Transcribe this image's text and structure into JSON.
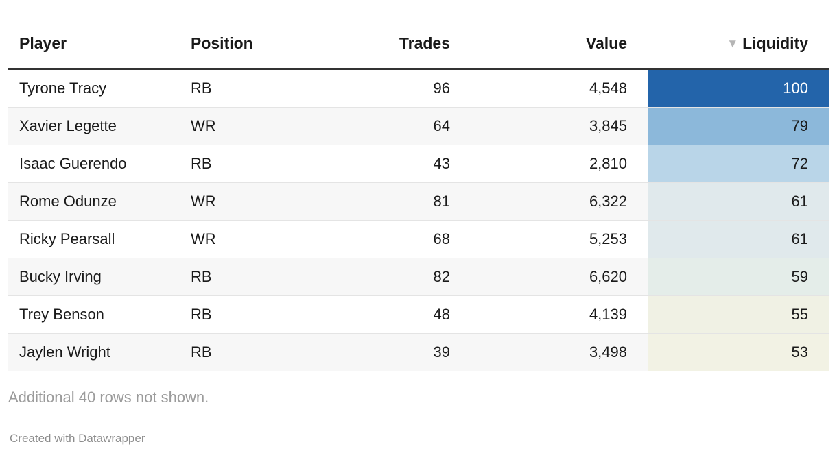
{
  "chart_data": {
    "type": "table",
    "title": "",
    "columns": [
      "Player",
      "Position",
      "Trades",
      "Value",
      "Liquidity"
    ],
    "column_alignment": [
      "left",
      "left",
      "right",
      "right",
      "right"
    ],
    "sorted_by": {
      "column": "Liquidity",
      "direction": "desc"
    },
    "rows": [
      {
        "player": "Tyrone Tracy",
        "position": "RB",
        "trades": 96,
        "value": 4548,
        "liquidity": 100
      },
      {
        "player": "Xavier Legette",
        "position": "WR",
        "trades": 64,
        "value": 3845,
        "liquidity": 79
      },
      {
        "player": "Isaac Guerendo",
        "position": "RB",
        "trades": 43,
        "value": 2810,
        "liquidity": 72
      },
      {
        "player": "Rome Odunze",
        "position": "WR",
        "trades": 81,
        "value": 6322,
        "liquidity": 61
      },
      {
        "player": "Ricky Pearsall",
        "position": "WR",
        "trades": 68,
        "value": 5253,
        "liquidity": 61
      },
      {
        "player": "Bucky Irving",
        "position": "RB",
        "trades": 82,
        "value": 6620,
        "liquidity": 59
      },
      {
        "player": "Trey Benson",
        "position": "RB",
        "trades": 48,
        "value": 4139,
        "liquidity": 55
      },
      {
        "player": "Jaylen Wright",
        "position": "RB",
        "trades": 39,
        "value": 3498,
        "liquidity": 53
      }
    ],
    "heatmap_column": "Liquidity",
    "legend_position": "none",
    "grid": "row-separators"
  },
  "table": {
    "header": {
      "player": "Player",
      "position": "Position",
      "trades": "Trades",
      "value": "Value",
      "liquidity": "Liquidity",
      "sort_icon": "▼"
    },
    "display_rows": [
      {
        "player": "Tyrone Tracy",
        "position": "RB",
        "trades": "96",
        "value": "4,548",
        "liquidity": "100",
        "liquidity_bg": "#2364aa",
        "liquidity_fg": "#ffffff"
      },
      {
        "player": "Xavier Legette",
        "position": "WR",
        "trades": "64",
        "value": "3,845",
        "liquidity": "79",
        "liquidity_bg": "#8cb8da",
        "liquidity_fg": "#1a1a1a"
      },
      {
        "player": "Isaac Guerendo",
        "position": "RB",
        "trades": "43",
        "value": "2,810",
        "liquidity": "72",
        "liquidity_bg": "#b9d5e8",
        "liquidity_fg": "#1a1a1a"
      },
      {
        "player": "Rome Odunze",
        "position": "WR",
        "trades": "81",
        "value": "6,322",
        "liquidity": "61",
        "liquidity_bg": "#e0e9ec",
        "liquidity_fg": "#1a1a1a"
      },
      {
        "player": "Ricky Pearsall",
        "position": "WR",
        "trades": "68",
        "value": "5,253",
        "liquidity": "61",
        "liquidity_bg": "#e0e9ec",
        "liquidity_fg": "#1a1a1a"
      },
      {
        "player": "Bucky Irving",
        "position": "RB",
        "trades": "82",
        "value": "6,620",
        "liquidity": "59",
        "liquidity_bg": "#e4ede9",
        "liquidity_fg": "#1a1a1a"
      },
      {
        "player": "Trey Benson",
        "position": "RB",
        "trades": "48",
        "value": "4,139",
        "liquidity": "55",
        "liquidity_bg": "#f0f1e4",
        "liquidity_fg": "#1a1a1a"
      },
      {
        "player": "Jaylen Wright",
        "position": "RB",
        "trades": "39",
        "value": "3,498",
        "liquidity": "53",
        "liquidity_bg": "#f2f2e4",
        "liquidity_fg": "#1a1a1a"
      }
    ]
  },
  "footer": {
    "note": "Additional 40 rows not shown.",
    "credit": "Created with Datawrapper"
  },
  "colors": {
    "header_rule": "#333333",
    "row_separator": "#e4e4e4",
    "alt_row_bg": "#f7f7f7",
    "text": "#1a1a1a",
    "note_text": "#9b9b9b",
    "credit_text": "#8c8c8c",
    "sort_arrow": "#b5b5b5"
  }
}
